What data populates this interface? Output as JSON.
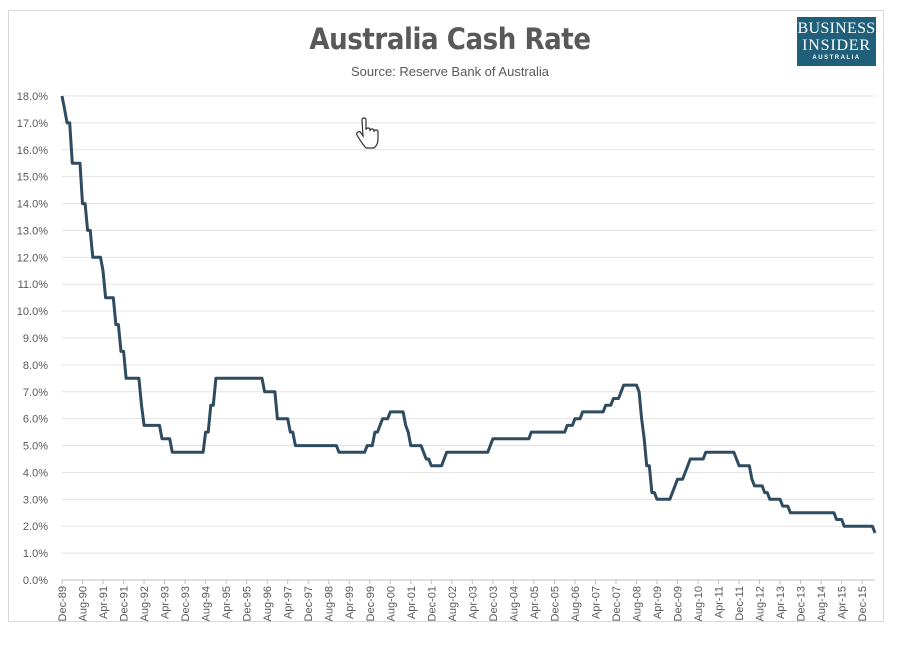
{
  "chart_data": {
    "type": "line",
    "title": "Australia Cash Rate",
    "subtitle": "Source: Reserve Bank of Australia",
    "xlabel": "",
    "ylabel": "",
    "ylim": [
      0,
      18
    ],
    "yticks": [
      "0.0%",
      "1.0%",
      "2.0%",
      "3.0%",
      "4.0%",
      "5.0%",
      "6.0%",
      "7.0%",
      "8.0%",
      "9.0%",
      "10.0%",
      "11.0%",
      "12.0%",
      "13.0%",
      "14.0%",
      "15.0%",
      "16.0%",
      "17.0%",
      "18.0%"
    ],
    "xticks": [
      "Dec-89",
      "Aug-90",
      "Apr-91",
      "Dec-91",
      "Aug-92",
      "Apr-93",
      "Dec-93",
      "Aug-94",
      "Apr-95",
      "Dec-95",
      "Aug-96",
      "Apr-97",
      "Dec-97",
      "Aug-98",
      "Apr-99",
      "Dec-99",
      "Aug-00",
      "Apr-01",
      "Dec-01",
      "Aug-02",
      "Apr-03",
      "Dec-03",
      "Aug-04",
      "Apr-05",
      "Dec-05",
      "Aug-06",
      "Apr-07",
      "Dec-07",
      "Aug-08",
      "Apr-09",
      "Dec-09",
      "Aug-10",
      "Apr-11",
      "Dec-11",
      "Aug-12",
      "Apr-13",
      "Dec-13",
      "Aug-14",
      "Apr-15",
      "Dec-15"
    ],
    "x_range": [
      "1989-12",
      "2016-05"
    ],
    "grid": "horizontal",
    "legend": "none",
    "line_color": "#2e4b60",
    "series": [
      {
        "unit": "percent, monthly",
        "change_points": [
          [
            "1989-12",
            18.0
          ],
          [
            "1990-01",
            17.5
          ],
          [
            "1990-02",
            17.0
          ],
          [
            "1990-04",
            15.5
          ],
          [
            "1990-08",
            14.0
          ],
          [
            "1990-10",
            13.0
          ],
          [
            "1990-12",
            12.0
          ],
          [
            "1991-04",
            11.5
          ],
          [
            "1991-05",
            10.5
          ],
          [
            "1991-09",
            9.5
          ],
          [
            "1991-11",
            8.5
          ],
          [
            "1992-01",
            7.5
          ],
          [
            "1992-07",
            6.5
          ],
          [
            "1992-08",
            5.75
          ],
          [
            "1993-03",
            5.25
          ],
          [
            "1993-07",
            4.75
          ],
          [
            "1994-08",
            5.5
          ],
          [
            "1994-10",
            6.5
          ],
          [
            "1994-12",
            7.5
          ],
          [
            "1996-07",
            7.0
          ],
          [
            "1996-12",
            6.0
          ],
          [
            "1997-05",
            5.5
          ],
          [
            "1997-07",
            5.0
          ],
          [
            "1998-12",
            4.75
          ],
          [
            "1999-11",
            5.0
          ],
          [
            "2000-02",
            5.5
          ],
          [
            "2000-04",
            5.75
          ],
          [
            "2000-05",
            6.0
          ],
          [
            "2000-08",
            6.25
          ],
          [
            "2001-02",
            5.75
          ],
          [
            "2001-03",
            5.5
          ],
          [
            "2001-04",
            5.0
          ],
          [
            "2001-09",
            4.75
          ],
          [
            "2001-10",
            4.5
          ],
          [
            "2001-12",
            4.25
          ],
          [
            "2002-05",
            4.5
          ],
          [
            "2002-06",
            4.75
          ],
          [
            "2003-11",
            5.0
          ],
          [
            "2003-12",
            5.25
          ],
          [
            "2005-03",
            5.5
          ],
          [
            "2006-05",
            5.75
          ],
          [
            "2006-08",
            6.0
          ],
          [
            "2006-11",
            6.25
          ],
          [
            "2007-08",
            6.5
          ],
          [
            "2007-11",
            6.75
          ],
          [
            "2008-02",
            7.0
          ],
          [
            "2008-03",
            7.25
          ],
          [
            "2008-09",
            7.0
          ],
          [
            "2008-10",
            6.0
          ],
          [
            "2008-11",
            5.25
          ],
          [
            "2008-12",
            4.25
          ],
          [
            "2009-02",
            3.25
          ],
          [
            "2009-04",
            3.0
          ],
          [
            "2009-10",
            3.25
          ],
          [
            "2009-11",
            3.5
          ],
          [
            "2009-12",
            3.75
          ],
          [
            "2010-03",
            4.0
          ],
          [
            "2010-04",
            4.25
          ],
          [
            "2010-05",
            4.5
          ],
          [
            "2010-11",
            4.75
          ],
          [
            "2011-11",
            4.5
          ],
          [
            "2011-12",
            4.25
          ],
          [
            "2012-05",
            3.75
          ],
          [
            "2012-06",
            3.5
          ],
          [
            "2012-10",
            3.25
          ],
          [
            "2012-12",
            3.0
          ],
          [
            "2013-05",
            2.75
          ],
          [
            "2013-08",
            2.5
          ],
          [
            "2015-02",
            2.25
          ],
          [
            "2015-05",
            2.0
          ],
          [
            "2016-05",
            1.75
          ]
        ]
      }
    ]
  },
  "logo": {
    "line1": "BUSINESS",
    "line2": "INSIDER",
    "line3": "AUSTRALIA",
    "color": "#1f5f7a"
  },
  "cursor_icon": "hand-pointer-icon"
}
